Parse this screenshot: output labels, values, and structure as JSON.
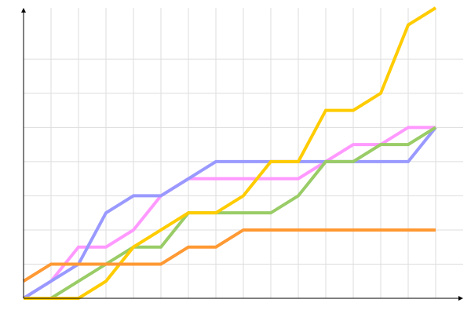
{
  "chart_data": {
    "type": "line",
    "title": "",
    "xlabel": "",
    "ylabel": "",
    "x": [
      0,
      1,
      2,
      3,
      4,
      5,
      6,
      7,
      8,
      9,
      10,
      11,
      12,
      13,
      14,
      15
    ],
    "xlim": [
      0,
      16
    ],
    "ylim": [
      0,
      17
    ],
    "grid": true,
    "grid_y_step": 2,
    "series": [
      {
        "color": "#ff99ff",
        "values": [
          0,
          1,
          3,
          3,
          4,
          6,
          7,
          7,
          7,
          7,
          7,
          8,
          9,
          9,
          10,
          10
        ]
      },
      {
        "color": "#9999ff",
        "values": [
          0,
          1,
          2,
          5,
          6,
          6,
          7,
          8,
          8,
          8,
          8,
          8,
          8,
          8,
          8,
          10
        ]
      },
      {
        "color": "#99cc66",
        "values": [
          0,
          0,
          1,
          2,
          3,
          3,
          5,
          5,
          5,
          5,
          6,
          8,
          8,
          9,
          9,
          10
        ]
      },
      {
        "color": "#ffcc00",
        "values": [
          0,
          0,
          0,
          1,
          3,
          4,
          5,
          5,
          6,
          8,
          8,
          11,
          11,
          12,
          16,
          17
        ]
      },
      {
        "color": "#ff9933",
        "values": [
          1,
          2,
          2,
          2,
          2,
          2,
          3,
          3,
          4,
          4,
          4,
          4,
          4,
          4,
          4,
          4
        ]
      }
    ]
  }
}
